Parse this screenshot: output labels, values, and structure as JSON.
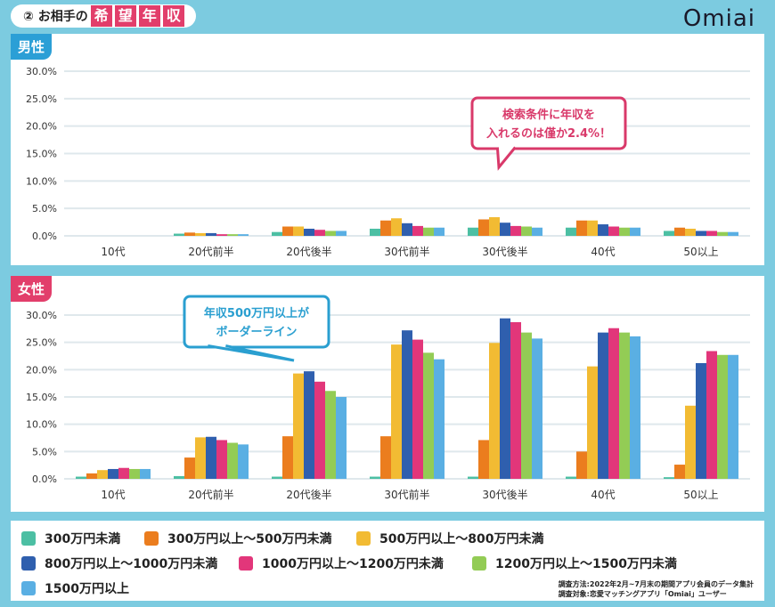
{
  "header": {
    "prefix": "② お相手の",
    "highlight": [
      "希",
      "望",
      "年",
      "収"
    ],
    "logo": "Omiai"
  },
  "colors": {
    "background": "#7ccbe0",
    "male_tag": "#2b9fd6",
    "female_tag": "#e23e6b",
    "callout_male": "#d9396a",
    "callout_female": "#2a9fd0"
  },
  "chart_data": [
    {
      "type": "bar",
      "panel_label": "男性",
      "ylim": [
        0,
        30
      ],
      "yticks": [
        "0.0%",
        "5.0%",
        "10.0%",
        "15.0%",
        "20.0%",
        "25.0%",
        "30.0%"
      ],
      "grid": true,
      "categories": [
        "10代",
        "20代前半",
        "20代後半",
        "30代前半",
        "30代後半",
        "40代",
        "50以上"
      ],
      "series": [
        {
          "name": "300万円未満",
          "color": "#4cbfa3",
          "values": [
            0,
            0.4,
            0.7,
            1.3,
            1.5,
            1.5,
            0.9
          ]
        },
        {
          "name": "300万円以上〜500万円未満",
          "color": "#eb7d1e",
          "values": [
            0,
            0.6,
            1.7,
            2.8,
            3.0,
            2.8,
            1.5
          ]
        },
        {
          "name": "500万円以上〜800万円未満",
          "color": "#f2bb33",
          "values": [
            0,
            0.5,
            1.7,
            3.2,
            3.4,
            2.8,
            1.3
          ]
        },
        {
          "name": "800万円以上〜1000万円未満",
          "color": "#2f5fae",
          "values": [
            0,
            0.5,
            1.3,
            2.3,
            2.4,
            2.1,
            0.9
          ]
        },
        {
          "name": "1000万円以上〜1200万円未満",
          "color": "#e2367a",
          "values": [
            0,
            0.3,
            1.1,
            1.8,
            1.8,
            1.7,
            0.9
          ]
        },
        {
          "name": "1200万円以上〜1500万円未満",
          "color": "#93cc55",
          "values": [
            0,
            0.3,
            0.9,
            1.5,
            1.7,
            1.5,
            0.7
          ]
        },
        {
          "name": "1500万円以上",
          "color": "#5aafe3",
          "values": [
            0,
            0.3,
            0.9,
            1.5,
            1.5,
            1.5,
            0.7
          ]
        }
      ],
      "annotation": [
        "検索条件に年収を",
        "入れるのは僅か2.4%！"
      ]
    },
    {
      "type": "bar",
      "panel_label": "女性",
      "ylim": [
        0,
        30
      ],
      "yticks": [
        "0.0%",
        "5.0%",
        "10.0%",
        "15.0%",
        "20.0%",
        "25.0%",
        "30.0%"
      ],
      "grid": true,
      "categories": [
        "10代",
        "20代前半",
        "20代後半",
        "30代前半",
        "30代後半",
        "40代",
        "50以上"
      ],
      "series": [
        {
          "name": "300万円未満",
          "color": "#4cbfa3",
          "values": [
            0.4,
            0.5,
            0.4,
            0.4,
            0.4,
            0.4,
            0.3
          ]
        },
        {
          "name": "300万円以上〜500万円未満",
          "color": "#eb7d1e",
          "values": [
            1.0,
            3.9,
            7.8,
            7.8,
            7.1,
            5.0,
            2.6
          ]
        },
        {
          "name": "500万円以上〜800万円未満",
          "color": "#f2bb33",
          "values": [
            1.6,
            7.6,
            19.3,
            24.6,
            24.9,
            20.6,
            13.4
          ]
        },
        {
          "name": "800万円以上〜1000万円未満",
          "color": "#2f5fae",
          "values": [
            1.8,
            7.7,
            19.7,
            27.2,
            29.4,
            26.8,
            21.2
          ]
        },
        {
          "name": "1000万円以上〜1200万円未満",
          "color": "#e2367a",
          "values": [
            2.0,
            7.1,
            17.8,
            25.5,
            28.7,
            27.6,
            23.4
          ]
        },
        {
          "name": "1200万円以上〜1500万円未満",
          "color": "#93cc55",
          "values": [
            1.8,
            6.6,
            16.1,
            23.1,
            26.8,
            26.8,
            22.7
          ]
        },
        {
          "name": "1500万円以上",
          "color": "#5aafe3",
          "values": [
            1.8,
            6.3,
            15.0,
            21.9,
            25.7,
            26.1,
            22.7
          ]
        }
      ],
      "annotation": [
        "年収500万円以上が",
        "ボーダーライン"
      ]
    }
  ],
  "legend": [
    "300万円未満",
    "300万円以上〜500万円未満",
    "500万円以上〜800万円未満",
    "800万円以上〜1000万円未満",
    "1000万円以上〜1200万円未満",
    "1200万円以上〜1500万円未満",
    "1500万円以上"
  ],
  "footnote": [
    "調査方法:2022年2月~7月末の期間アプリ会員のデータ集計",
    "調査対象:恋愛マッチングアプリ「Omiai」ユーザー"
  ]
}
